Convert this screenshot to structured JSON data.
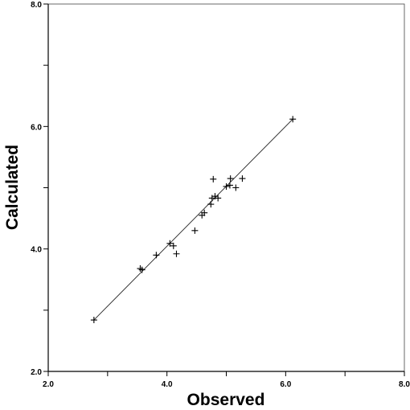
{
  "chart_data": {
    "type": "scatter",
    "xlabel": "Observed",
    "ylabel": "Calculated",
    "xlim": [
      2.0,
      8.0
    ],
    "ylim": [
      2.0,
      8.0
    ],
    "x_ticks": [
      2.0,
      3.0,
      4.0,
      5.0,
      6.0,
      7.0,
      8.0
    ],
    "y_ticks": [
      2.0,
      3.0,
      4.0,
      5.0,
      6.0,
      7.0,
      8.0
    ],
    "x_tick_labels": [
      "2.0",
      "4.0",
      "6.0",
      "8.0"
    ],
    "y_tick_labels": [
      "2.0",
      "4.0",
      "6.0",
      "8.0"
    ],
    "grid": false,
    "marker": "plus",
    "points": [
      {
        "x": 2.77,
        "y": 2.84
      },
      {
        "x": 3.55,
        "y": 3.68
      },
      {
        "x": 3.58,
        "y": 3.66
      },
      {
        "x": 3.82,
        "y": 3.9
      },
      {
        "x": 4.05,
        "y": 4.09
      },
      {
        "x": 4.11,
        "y": 4.05
      },
      {
        "x": 4.16,
        "y": 3.92
      },
      {
        "x": 4.47,
        "y": 4.3
      },
      {
        "x": 4.59,
        "y": 4.55
      },
      {
        "x": 4.63,
        "y": 4.59
      },
      {
        "x": 4.74,
        "y": 4.73
      },
      {
        "x": 4.76,
        "y": 4.83
      },
      {
        "x": 4.78,
        "y": 5.14
      },
      {
        "x": 4.81,
        "y": 4.86
      },
      {
        "x": 4.86,
        "y": 4.83
      },
      {
        "x": 5.0,
        "y": 5.02
      },
      {
        "x": 5.06,
        "y": 5.04
      },
      {
        "x": 5.07,
        "y": 5.15
      },
      {
        "x": 5.16,
        "y": 5.0
      },
      {
        "x": 5.27,
        "y": 5.15
      },
      {
        "x": 6.12,
        "y": 6.12
      }
    ],
    "fit_line": {
      "x": [
        2.77,
        6.12
      ],
      "y": [
        2.84,
        6.12
      ]
    }
  }
}
